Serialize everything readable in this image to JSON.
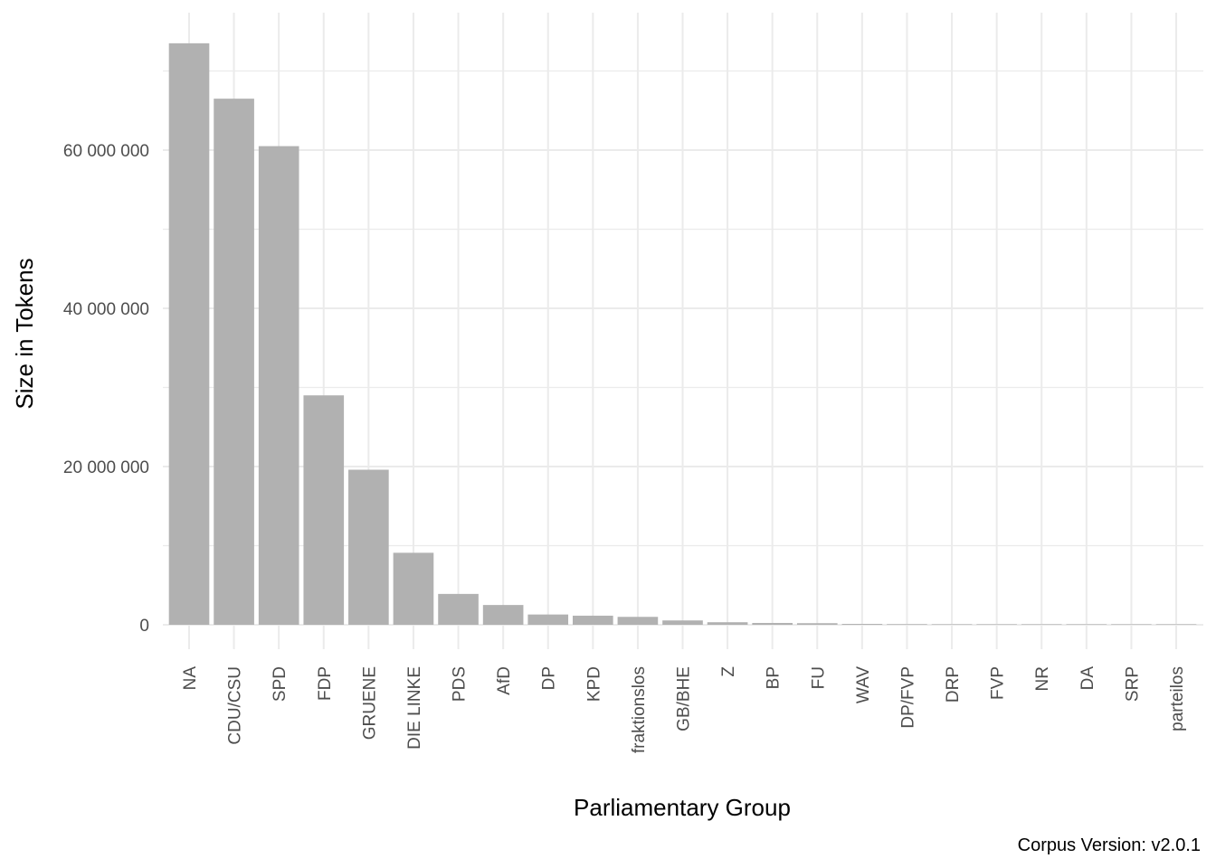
{
  "chart_data": {
    "type": "bar",
    "title": "",
    "xlabel": "Parliamentary Group",
    "ylabel": "Size in Tokens",
    "caption": "Corpus Version: v2.0.1",
    "ylim": [
      0,
      75000000
    ],
    "y_ticks": [
      0,
      20000000,
      40000000,
      60000000
    ],
    "y_tick_labels": [
      "0",
      "20 000 000",
      "40 000 000",
      "60 000 000"
    ],
    "y_minor_ticks": [
      10000000,
      30000000,
      50000000,
      70000000
    ],
    "grid": true,
    "legend": "none",
    "bar_color": "#b1b1b1",
    "categories": [
      "NA",
      "CDU/CSU",
      "SPD",
      "FDP",
      "GRUENE",
      "DIE LINKE",
      "PDS",
      "AfD",
      "DP",
      "KPD",
      "fraktionslos",
      "GB/BHE",
      "Z",
      "BP",
      "FU",
      "WAV",
      "DP/FVP",
      "DRP",
      "FVP",
      "NR",
      "DA",
      "SRP",
      "parteilos"
    ],
    "values": [
      73500000,
      66500000,
      60500000,
      29000000,
      19600000,
      9100000,
      3900000,
      2500000,
      1300000,
      1150000,
      1000000,
      550000,
      320000,
      230000,
      200000,
      110000,
      80000,
      60000,
      40000,
      30000,
      25000,
      15000,
      10000
    ]
  }
}
